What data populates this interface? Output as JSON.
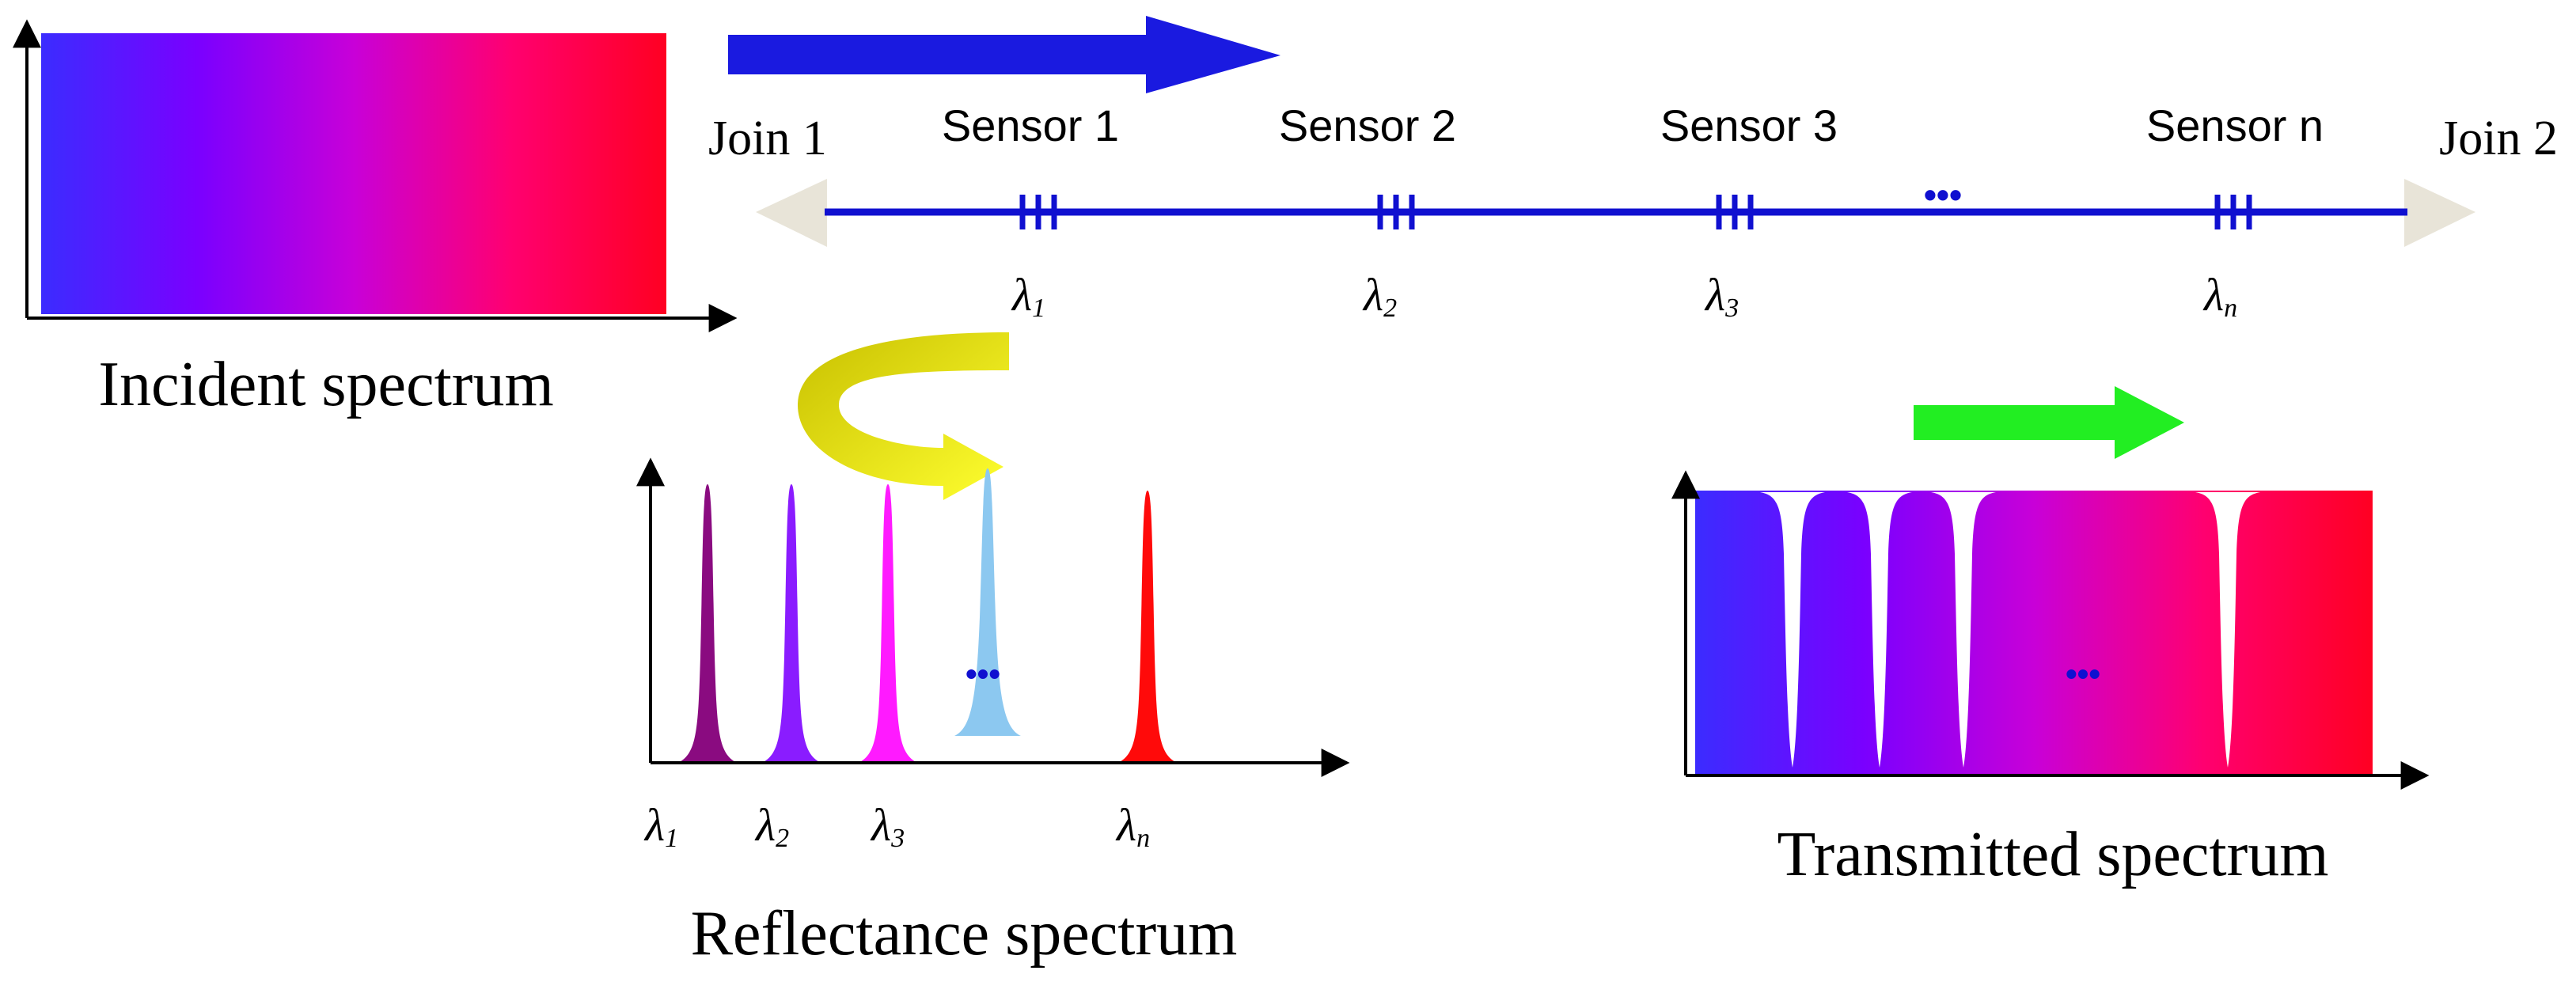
{
  "incident": {
    "title": "Incident spectrum",
    "gradient_colors": [
      "#3b2cff",
      "#7a00ff",
      "#c800d8",
      "#ff0070",
      "#ff0022"
    ]
  },
  "fiber": {
    "join_left": "Join 1",
    "join_right": "Join 2",
    "ellipsis": "•••",
    "line_color": "#1010d0",
    "end_arrow_color": "#e8e4d8",
    "sensors": [
      {
        "label": "Sensor 1",
        "wavelength": "λ",
        "subscript": "1"
      },
      {
        "label": "Sensor 2",
        "wavelength": "λ",
        "subscript": "2"
      },
      {
        "label": "Sensor 3",
        "wavelength": "λ",
        "subscript": "3"
      },
      {
        "label": "Sensor n",
        "wavelength": "λ",
        "subscript": "n"
      }
    ]
  },
  "arrows": {
    "propagation_color": "#1a1ae0",
    "reflection_color_start": "#c8c000",
    "reflection_color_end": "#ffff30",
    "transmission_color": "#22ee22"
  },
  "reflectance": {
    "title": "Reflectance spectrum",
    "ellipsis": "•••",
    "peaks": [
      {
        "wavelength": "λ",
        "subscript": "1",
        "color": "#8a0b80"
      },
      {
        "wavelength": "λ",
        "subscript": "2",
        "color": "#8a1cff"
      },
      {
        "wavelength": "λ",
        "subscript": "3",
        "color": "#ff1aff"
      },
      {
        "wavelength": "",
        "subscript": "",
        "color": "#8cc8f0"
      },
      {
        "wavelength": "λ",
        "subscript": "n",
        "color": "#ff0a0a"
      }
    ]
  },
  "transmitted": {
    "title": "Transmitted spectrum",
    "ellipsis": "•••",
    "notch_color": "#ffffff"
  }
}
